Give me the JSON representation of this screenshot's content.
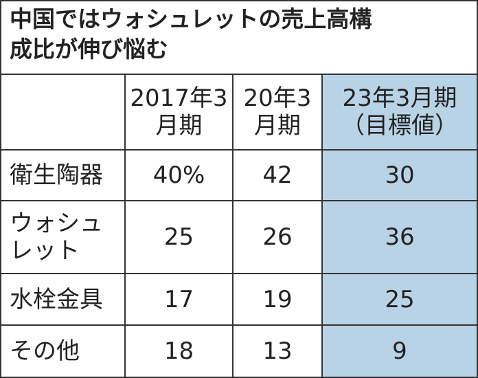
{
  "chart_data": {
    "type": "table",
    "title": "中国ではウォシュレットの売上高構成比が伸び悩む",
    "columns": [
      "",
      "2017年3月期",
      "20年3月期",
      "23年3月期（目標値）"
    ],
    "column_lines": [
      [
        ""
      ],
      [
        "2017年",
        "3月期"
      ],
      [
        "20年3",
        "月期"
      ],
      [
        "23年3月期",
        "（目標値）"
      ]
    ],
    "rows": [
      {
        "label": "衛生陶器",
        "label_lines": [
          "衛生陶器"
        ],
        "values": [
          "40%",
          "42",
          "30"
        ]
      },
      {
        "label": "ウォシュレット",
        "label_lines": [
          "ウォシュ",
          "レット"
        ],
        "values": [
          "25",
          "26",
          "36"
        ]
      },
      {
        "label": "水栓金具",
        "label_lines": [
          "水栓金具"
        ],
        "values": [
          "17",
          "19",
          "25"
        ]
      },
      {
        "label": "その他",
        "label_lines": [
          "その他"
        ],
        "values": [
          "18",
          "13",
          "9"
        ]
      }
    ],
    "highlight_column_color": "#b9d3e6"
  },
  "title_lines": [
    "中国ではウォシュレットの売上高構",
    "成比が伸び悩む"
  ]
}
